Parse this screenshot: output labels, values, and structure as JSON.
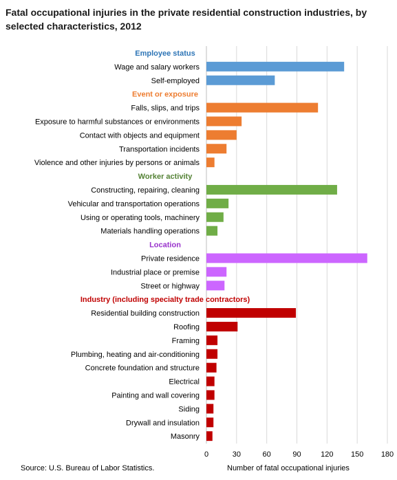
{
  "title": "Fatal occupational injuries in the private residential construction industries, by selected characteristics, 2012",
  "source": "Source: U.S. Bureau of Labor Statistics.",
  "chart_data": {
    "type": "bar",
    "orientation": "horizontal",
    "xlabel": "Number  of fatal occupational injuries",
    "xlim": [
      0,
      180
    ],
    "xticks": [
      0,
      30,
      60,
      90,
      120,
      150,
      180
    ],
    "grid": true,
    "groups": [
      {
        "name": "Employee status",
        "color": "#5b9bd5",
        "categories": [
          "Wage and salary workers",
          "Self-employed"
        ],
        "values": [
          137,
          68
        ]
      },
      {
        "name": "Event or exposure",
        "color": "#ed7d31",
        "categories": [
          "Falls, slips, and trips",
          "Exposure to harmful substances or environments",
          "Contact with objects and equipment",
          "Transportation incidents",
          "Violence and other injuries by persons or animals"
        ],
        "values": [
          111,
          35,
          30,
          20,
          8
        ]
      },
      {
        "name": "Worker activity",
        "color": "#70ad47",
        "categories": [
          "Constructing, repairing, cleaning",
          "Vehicular and transportation operations",
          "Using or operating tools, machinery",
          "Materials handling operations"
        ],
        "values": [
          130,
          22,
          17,
          11
        ]
      },
      {
        "name": "Location",
        "color": "#cc66ff",
        "categories": [
          "Private residence",
          "Industrial place or premise",
          "Street or highway"
        ],
        "values": [
          160,
          20,
          18
        ]
      },
      {
        "name": "Industry (including specialty trade contractors)",
        "color": "#c00000",
        "categories": [
          "Residential building construction",
          "Roofing",
          "Framing",
          "Plumbing, heating and air-conditioning",
          "Concrete foundation and structure",
          "Electrical",
          "Painting and wall covering",
          "Siding",
          "Drywall and insulation",
          "Masonry"
        ],
        "values": [
          89,
          31,
          11,
          11,
          10,
          8,
          8,
          7,
          7,
          6
        ]
      }
    ],
    "header_colors": [
      "#2e75b6",
      "#ed7d31",
      "#548235",
      "#9933cc",
      "#c00000"
    ]
  }
}
